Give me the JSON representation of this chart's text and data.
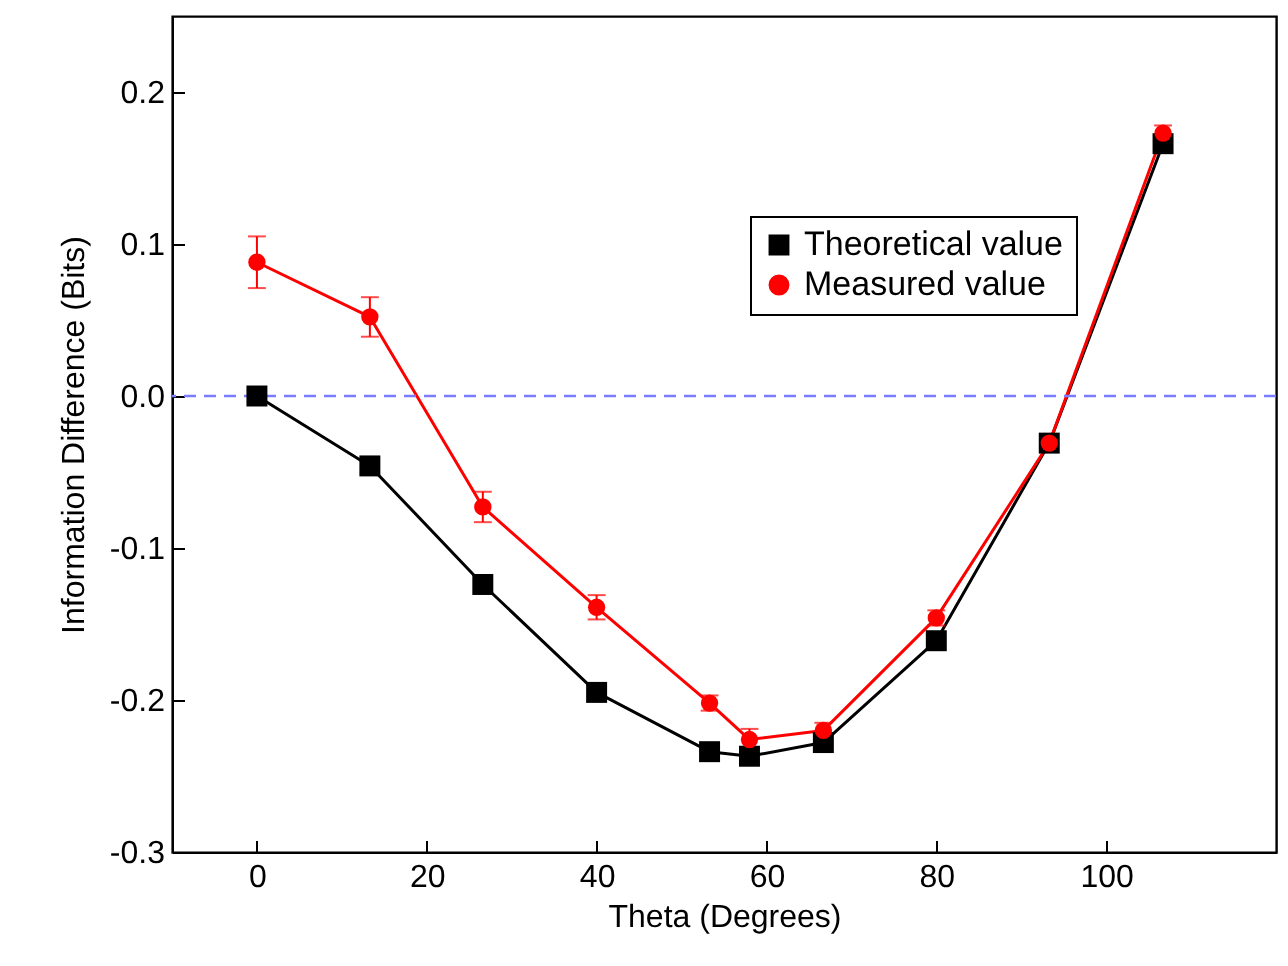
{
  "chart_data": {
    "type": "line",
    "xlabel": "Theta (Degrees)",
    "ylabel": "Information Difference  (Bits)",
    "x": [
      0,
      13.3,
      26.6,
      40,
      53.3,
      58,
      66.7,
      80,
      93.3,
      106.7
    ],
    "series": [
      {
        "name": "Theoretical value",
        "color": "#000000",
        "marker": "square",
        "values": [
          0,
          -0.046,
          -0.124,
          -0.195,
          -0.234,
          -0.237,
          -0.228,
          -0.161,
          -0.031,
          0.166
        ]
      },
      {
        "name": "Measured  value",
        "color": "#ff0000",
        "marker": "circle",
        "values": [
          0.088,
          0.052,
          -0.073,
          -0.139,
          -0.202,
          -0.226,
          -0.22,
          -0.146,
          -0.031,
          0.173
        ],
        "errors": [
          0.017,
          0.013,
          0.01,
          0.008,
          0.005,
          0.007,
          0.005,
          0.005,
          0.003,
          0.005
        ]
      }
    ],
    "xlim": [
      -10,
      120
    ],
    "xticks": [
      0,
      20,
      40,
      60,
      80,
      100
    ],
    "ylim": [
      -0.3,
      0.25
    ],
    "yticks": [
      -0.3,
      -0.2,
      -0.1,
      {
        "value": 0,
        "label": "0.0"
      },
      0.1,
      0.2
    ],
    "ref_lines": [
      {
        "axis": "y",
        "value": 0,
        "color": "#7b7bff",
        "line_style": "dashed"
      }
    ],
    "legend": "top right",
    "grid": false,
    "line_style": "solid"
  }
}
